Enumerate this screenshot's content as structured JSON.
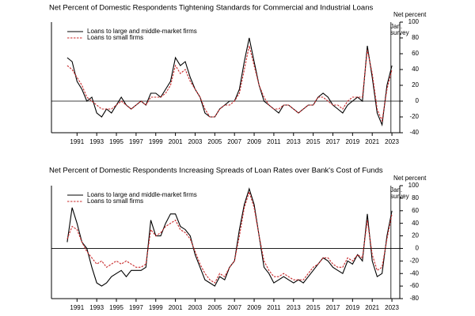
{
  "chart_data": [
    {
      "type": "line",
      "title": "Net Percent of Domestic Respondents Tightening Standards for Commercial and Industrial Loans",
      "y_label": "Net percent",
      "annotation": [
        "Jan.",
        "survey"
      ],
      "survey_x": 2022.9,
      "x": [
        1990,
        1990.5,
        1991,
        1991.5,
        1992,
        1992.5,
        1993,
        1993.5,
        1994,
        1994.5,
        1995,
        1995.5,
        1996,
        1996.5,
        1997,
        1997.5,
        1998,
        1998.5,
        1999,
        1999.5,
        2000,
        2000.5,
        2001,
        2001.5,
        2002,
        2002.5,
        2003,
        2003.5,
        2004,
        2004.5,
        2005,
        2005.5,
        2006,
        2006.5,
        2007,
        2007.5,
        2008,
        2008.5,
        2009,
        2009.5,
        2010,
        2010.5,
        2011,
        2011.5,
        2012,
        2012.5,
        2013,
        2013.5,
        2014,
        2014.5,
        2015,
        2015.5,
        2016,
        2016.5,
        2017,
        2017.5,
        2018,
        2018.5,
        2019,
        2019.5,
        2020,
        2020.5,
        2021,
        2021.5,
        2022,
        2022.5,
        2023
      ],
      "xlim": [
        1988.4,
        2023.8
      ],
      "xticks": [
        1991,
        1993,
        1995,
        1997,
        1999,
        2001,
        2003,
        2005,
        2007,
        2009,
        2011,
        2013,
        2015,
        2017,
        2019,
        2021,
        2023
      ],
      "ylim": [
        -40,
        100
      ],
      "yticks": [
        -40,
        -20,
        0,
        20,
        40,
        60,
        80,
        100
      ],
      "series": [
        {
          "name": "Loans to large and middle-market firms",
          "color": "#000000",
          "style": "solid",
          "values": [
            55,
            50,
            25,
            15,
            0,
            5,
            -15,
            -20,
            -10,
            -15,
            -5,
            5,
            -5,
            -10,
            -5,
            0,
            -5,
            10,
            10,
            5,
            15,
            25,
            55,
            45,
            50,
            30,
            15,
            5,
            -15,
            -20,
            -20,
            -10,
            -5,
            0,
            0,
            15,
            50,
            80,
            50,
            20,
            0,
            -5,
            -10,
            -15,
            -5,
            -5,
            -10,
            -15,
            -10,
            -5,
            -5,
            5,
            10,
            5,
            -5,
            -10,
            -15,
            -5,
            0,
            5,
            0,
            70,
            30,
            -15,
            -30,
            20,
            45
          ]
        },
        {
          "name": "Loans to small firms",
          "color": "#c8282a",
          "style": "dashed",
          "values": [
            45,
            40,
            30,
            20,
            5,
            0,
            -5,
            -10,
            -10,
            -10,
            -5,
            0,
            -5,
            -10,
            -5,
            0,
            -5,
            5,
            5,
            5,
            10,
            20,
            45,
            35,
            40,
            25,
            15,
            5,
            -10,
            -20,
            -20,
            -10,
            -5,
            -5,
            0,
            10,
            40,
            70,
            45,
            20,
            5,
            -5,
            -10,
            -10,
            -5,
            -5,
            -10,
            -15,
            -10,
            -5,
            -5,
            5,
            5,
            0,
            -5,
            -5,
            -10,
            0,
            5,
            5,
            5,
            65,
            35,
            -10,
            -25,
            15,
            40
          ]
        }
      ]
    },
    {
      "type": "line",
      "title": "Net Percent of Domestic Respondents Increasing Spreads of Loan Rates over Bank's Cost of Funds",
      "y_label": "Net percent",
      "annotation": [
        "Jan.",
        "survey"
      ],
      "survey_x": 2022.9,
      "x": [
        1990,
        1990.5,
        1991,
        1991.5,
        1992,
        1992.5,
        1993,
        1993.5,
        1994,
        1994.5,
        1995,
        1995.5,
        1996,
        1996.5,
        1997,
        1997.5,
        1998,
        1998.5,
        1999,
        1999.5,
        2000,
        2000.5,
        2001,
        2001.5,
        2002,
        2002.5,
        2003,
        2003.5,
        2004,
        2004.5,
        2005,
        2005.5,
        2006,
        2006.5,
        2007,
        2007.5,
        2008,
        2008.5,
        2009,
        2009.5,
        2010,
        2010.5,
        2011,
        2011.5,
        2012,
        2012.5,
        2013,
        2013.5,
        2014,
        2014.5,
        2015,
        2015.5,
        2016,
        2016.5,
        2017,
        2017.5,
        2018,
        2018.5,
        2019,
        2019.5,
        2020,
        2020.5,
        2021,
        2021.5,
        2022,
        2022.5,
        2023
      ],
      "xlim": [
        1988.4,
        2023.8
      ],
      "xticks": [
        1991,
        1993,
        1995,
        1997,
        1999,
        2001,
        2003,
        2005,
        2007,
        2009,
        2011,
        2013,
        2015,
        2017,
        2019,
        2021,
        2023
      ],
      "ylim": [
        -80,
        100
      ],
      "yticks": [
        -80,
        -60,
        -40,
        -20,
        0,
        20,
        40,
        60,
        80,
        100
      ],
      "series": [
        {
          "name": "Loans to large and middle-market firms",
          "color": "#000000",
          "style": "solid",
          "values": [
            10,
            65,
            40,
            10,
            0,
            -30,
            -55,
            -60,
            -55,
            -45,
            -40,
            -35,
            -45,
            -35,
            -35,
            -35,
            -30,
            45,
            20,
            20,
            40,
            55,
            55,
            35,
            30,
            20,
            -10,
            -30,
            -50,
            -55,
            -60,
            -45,
            -50,
            -30,
            -20,
            30,
            70,
            95,
            70,
            20,
            -30,
            -40,
            -55,
            -50,
            -45,
            -50,
            -55,
            -50,
            -55,
            -45,
            -35,
            -25,
            -15,
            -20,
            -30,
            -35,
            -40,
            -20,
            -25,
            -10,
            -20,
            55,
            -20,
            -45,
            -40,
            20,
            60
          ]
        },
        {
          "name": "Loans to small firms",
          "color": "#c8282a",
          "style": "dashed",
          "values": [
            15,
            35,
            30,
            10,
            -5,
            -15,
            -25,
            -20,
            -30,
            -25,
            -20,
            -25,
            -20,
            -25,
            -30,
            -30,
            -25,
            30,
            20,
            25,
            35,
            40,
            45,
            30,
            25,
            15,
            -5,
            -25,
            -40,
            -50,
            -55,
            -40,
            -45,
            -30,
            -20,
            20,
            65,
            90,
            65,
            20,
            -20,
            -35,
            -45,
            -45,
            -40,
            -45,
            -50,
            -50,
            -50,
            -40,
            -30,
            -25,
            -15,
            -15,
            -25,
            -30,
            -30,
            -15,
            -20,
            -10,
            -15,
            45,
            -10,
            -35,
            -30,
            15,
            55
          ]
        }
      ]
    }
  ]
}
